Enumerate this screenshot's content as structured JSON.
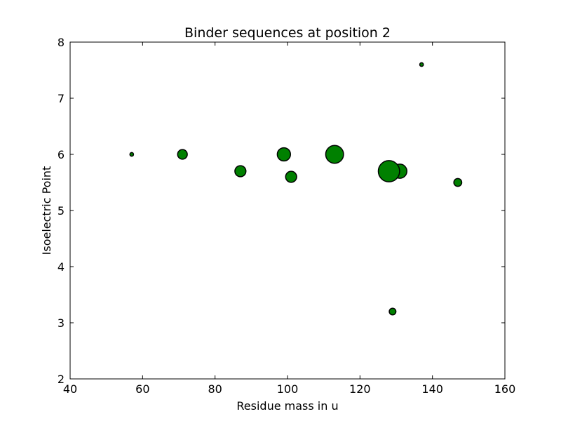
{
  "chart_data": {
    "type": "scatter",
    "title": "Binder sequences at position 2",
    "xlabel": "Residue mass in u",
    "ylabel": "Isoelectric Point",
    "xlim": [
      40,
      160
    ],
    "ylim": [
      2,
      8
    ],
    "xticks": [
      40,
      60,
      80,
      100,
      120,
      140,
      160
    ],
    "yticks": [
      2,
      3,
      4,
      5,
      6,
      7,
      8
    ],
    "grid": false,
    "marker_color": "#008000",
    "marker_edge_color": "#000000",
    "points": [
      {
        "x": 57,
        "y": 6.0,
        "size": 1
      },
      {
        "x": 71,
        "y": 6.0,
        "size": 3
      },
      {
        "x": 87,
        "y": 5.7,
        "size": 4
      },
      {
        "x": 99,
        "y": 6.0,
        "size": 6
      },
      {
        "x": 101,
        "y": 5.6,
        "size": 4
      },
      {
        "x": 113,
        "y": 6.0,
        "size": 12
      },
      {
        "x": 131,
        "y": 5.7,
        "size": 7
      },
      {
        "x": 128,
        "y": 5.7,
        "size": 18
      },
      {
        "x": 129,
        "y": 3.2,
        "size": 1.5
      },
      {
        "x": 137,
        "y": 7.6,
        "size": 1
      },
      {
        "x": 147,
        "y": 5.5,
        "size": 2
      }
    ]
  }
}
